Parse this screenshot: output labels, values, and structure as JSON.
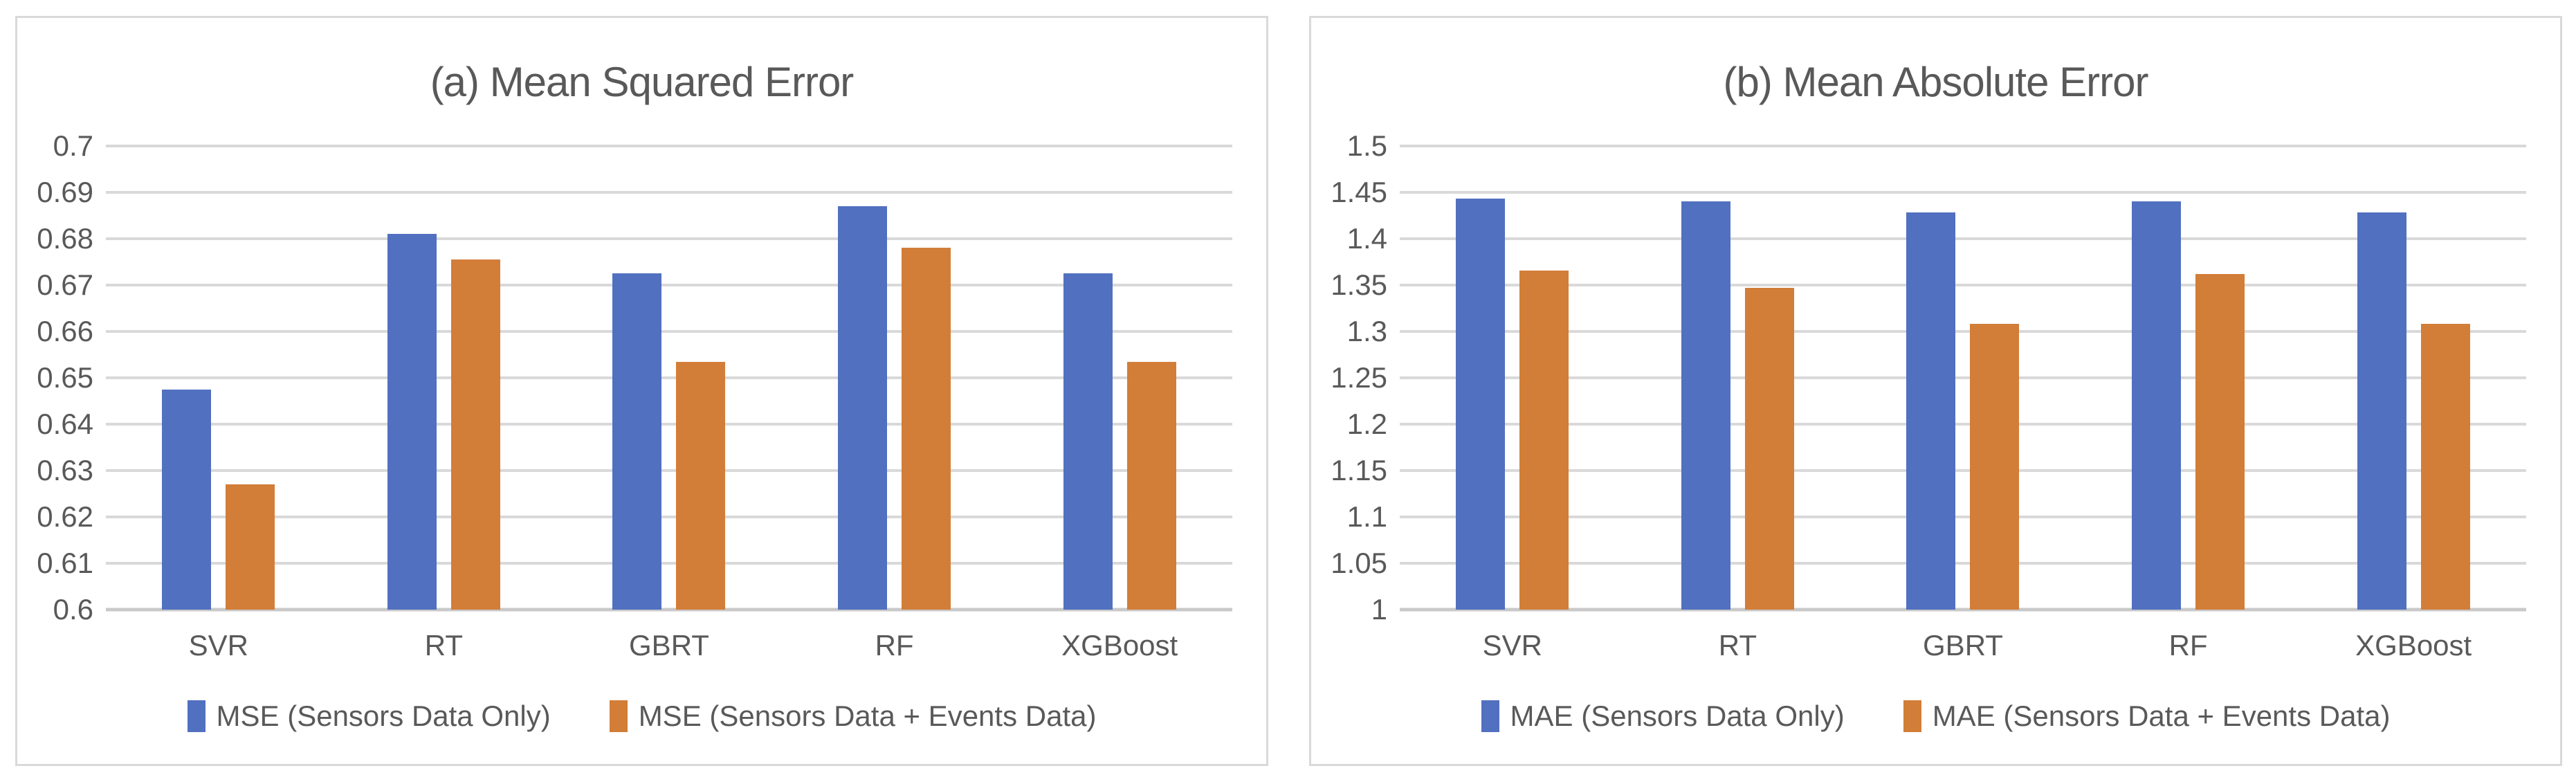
{
  "colors": {
    "series1": "#5170c0",
    "series2": "#d27d38",
    "gridline": "#d9d9d9",
    "baseline": "#c9c9c9",
    "text": "#595959",
    "panel_border": "#d9d9d9"
  },
  "chart_data": [
    {
      "type": "bar",
      "title": "(a) Mean Squared Error",
      "categories": [
        "SVR",
        "RT",
        "GBRT",
        "RF",
        "XGBoost"
      ],
      "series": [
        {
          "name": "MSE (Sensors Data Only)",
          "values": [
            0.6475,
            0.681,
            0.6725,
            0.687,
            0.6725
          ]
        },
        {
          "name": "MSE (Sensors Data + Events Data)",
          "values": [
            0.627,
            0.6755,
            0.6535,
            0.678,
            0.6535
          ]
        }
      ],
      "xlabel": "",
      "ylabel": "",
      "ylim": [
        0.6,
        0.7
      ],
      "yticks": [
        {
          "v": 0.7,
          "label": "0.7"
        },
        {
          "v": 0.69,
          "label": "0.69"
        },
        {
          "v": 0.68,
          "label": "0.68"
        },
        {
          "v": 0.67,
          "label": "0.67"
        },
        {
          "v": 0.66,
          "label": "0.66"
        },
        {
          "v": 0.65,
          "label": "0.65"
        },
        {
          "v": 0.64,
          "label": "0.64"
        },
        {
          "v": 0.63,
          "label": "0.63"
        },
        {
          "v": 0.62,
          "label": "0.62"
        },
        {
          "v": 0.61,
          "label": "0.61"
        },
        {
          "v": 0.6,
          "label": "0.6"
        }
      ],
      "grid": true,
      "legend_position": "bottom"
    },
    {
      "type": "bar",
      "title": "(b) Mean Absolute Error",
      "categories": [
        "SVR",
        "RT",
        "GBRT",
        "RF",
        "XGBoost"
      ],
      "series": [
        {
          "name": "MAE (Sensors Data Only)",
          "values": [
            1.443,
            1.44,
            1.428,
            1.44,
            1.428
          ]
        },
        {
          "name": "MAE (Sensors Data + Events Data)",
          "values": [
            1.366,
            1.347,
            1.308,
            1.362,
            1.308
          ]
        }
      ],
      "xlabel": "",
      "ylabel": "",
      "ylim": [
        1.0,
        1.5
      ],
      "yticks": [
        {
          "v": 1.5,
          "label": "1.5"
        },
        {
          "v": 1.45,
          "label": "1.45"
        },
        {
          "v": 1.4,
          "label": "1.4"
        },
        {
          "v": 1.35,
          "label": "1.35"
        },
        {
          "v": 1.3,
          "label": "1.3"
        },
        {
          "v": 1.25,
          "label": "1.25"
        },
        {
          "v": 1.2,
          "label": "1.2"
        },
        {
          "v": 1.15,
          "label": "1.15"
        },
        {
          "v": 1.1,
          "label": "1.1"
        },
        {
          "v": 1.05,
          "label": "1.05"
        },
        {
          "v": 1.0,
          "label": "1"
        }
      ],
      "grid": true,
      "legend_position": "bottom"
    }
  ]
}
